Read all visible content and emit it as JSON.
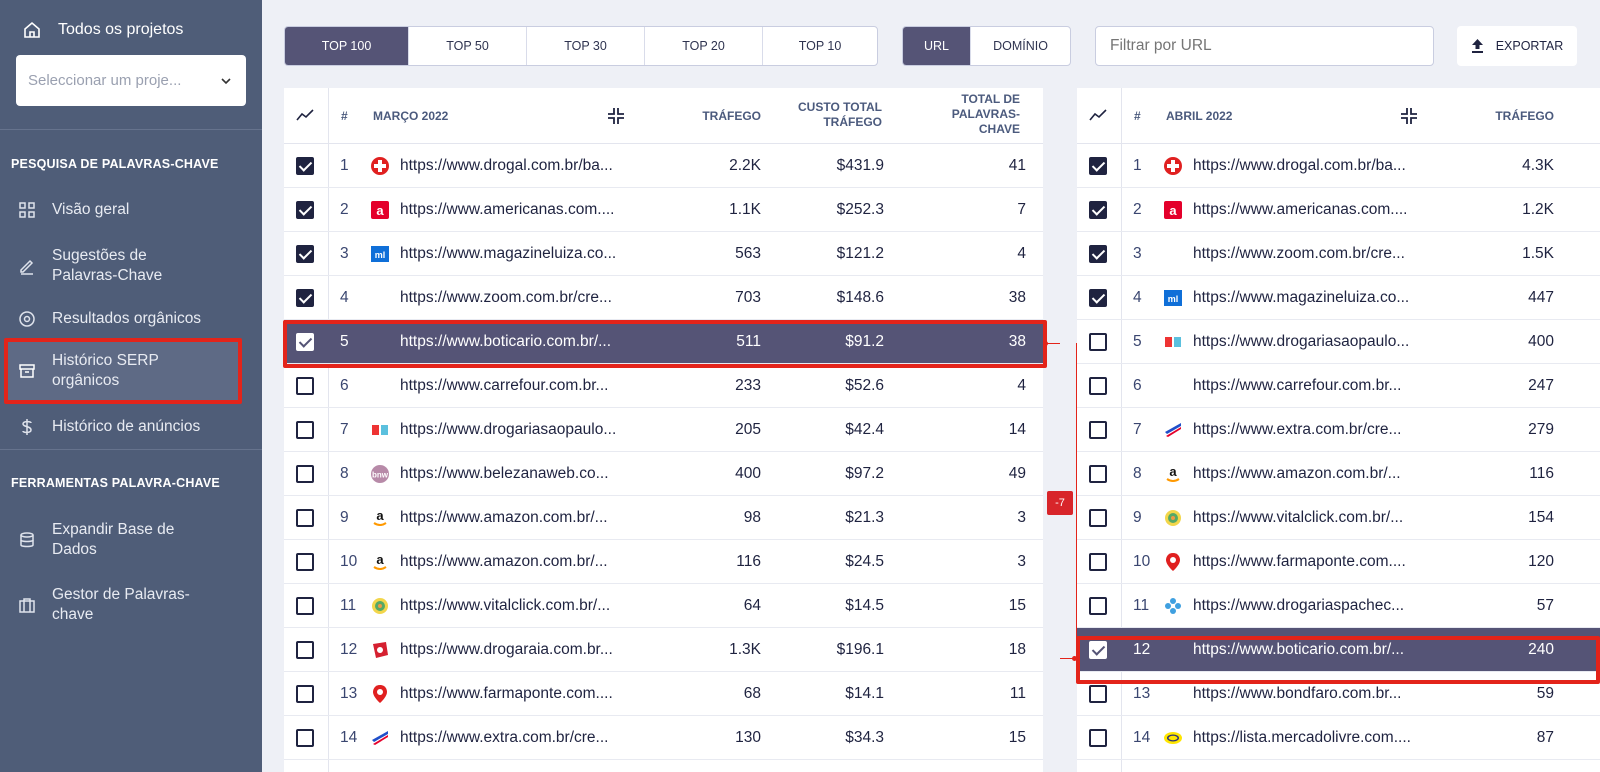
{
  "sidebar": {
    "all_projects": "Todos os projetos",
    "project_select_placeholder": "Seleccionar um proje...",
    "section_keyword_research": "PESQUISA DE PALAVRAS-CHAVE",
    "section_keyword_tools": "FERRAMENTAS PALAVRA-CHAVE",
    "items": [
      {
        "label": "Visão geral",
        "icon": "grid-icon"
      },
      {
        "label": "Sugestões de Palavras-Chave",
        "icon": "pencil-icon"
      },
      {
        "label": "Resultados orgânicos",
        "icon": "target-icon"
      },
      {
        "label": "Histórico SERP orgânicos",
        "icon": "archive-icon",
        "active": true
      },
      {
        "label": "Histórico de anúncios",
        "icon": "dollar-icon"
      },
      {
        "label": "Expandir Base de Dados",
        "icon": "database-icon"
      },
      {
        "label": "Gestor de Palavras-chave",
        "icon": "briefcase-icon"
      }
    ]
  },
  "toolbar": {
    "top_options": [
      "TOP 100",
      "TOP 50",
      "TOP 30",
      "TOP 20",
      "TOP 10"
    ],
    "top_selected": "TOP 100",
    "mode_options": [
      "URL",
      "DOMÍNIO"
    ],
    "mode_selected": "URL",
    "filter_placeholder": "Filtrar por URL",
    "export_label": "EXPORTAR"
  },
  "left_table": {
    "period": "MARÇO 2022",
    "headers": {
      "hash": "#",
      "traffic": "TRÁFEGO",
      "cost": "CUSTO TOTAL TRÁFEGO",
      "keywords": "TOTAL DE PALAVRAS-CHAVE"
    },
    "rows": [
      {
        "pos": "1",
        "url": "https://www.drogal.com.br/ba...",
        "traffic": "2.2K",
        "cost": "$431.9",
        "keywords": "41",
        "checked": true,
        "fav": "drogal"
      },
      {
        "pos": "2",
        "url": "https://www.americanas.com....",
        "traffic": "1.1K",
        "cost": "$252.3",
        "keywords": "7",
        "checked": true,
        "fav": "americanas"
      },
      {
        "pos": "3",
        "url": "https://www.magazineluiza.co...",
        "traffic": "563",
        "cost": "$121.2",
        "keywords": "4",
        "checked": true,
        "fav": "magalu"
      },
      {
        "pos": "4",
        "url": "https://www.zoom.com.br/cre...",
        "traffic": "703",
        "cost": "$148.6",
        "keywords": "38",
        "checked": true,
        "fav": ""
      },
      {
        "pos": "5",
        "url": "https://www.boticario.com.br/...",
        "traffic": "511",
        "cost": "$91.2",
        "keywords": "38",
        "checked": true,
        "fav": "",
        "highlight": true
      },
      {
        "pos": "6",
        "url": "https://www.carrefour.com.br...",
        "traffic": "233",
        "cost": "$52.6",
        "keywords": "4",
        "checked": false,
        "fav": ""
      },
      {
        "pos": "7",
        "url": "https://www.drogariasaopaulo...",
        "traffic": "205",
        "cost": "$42.4",
        "keywords": "14",
        "checked": false,
        "fav": "dsp"
      },
      {
        "pos": "8",
        "url": "https://www.belezanaweb.co...",
        "traffic": "400",
        "cost": "$97.2",
        "keywords": "49",
        "checked": false,
        "fav": "bnw"
      },
      {
        "pos": "9",
        "url": "https://www.amazon.com.br/...",
        "traffic": "98",
        "cost": "$21.3",
        "keywords": "3",
        "checked": false,
        "fav": "amazon"
      },
      {
        "pos": "10",
        "url": "https://www.amazon.com.br/...",
        "traffic": "116",
        "cost": "$24.5",
        "keywords": "3",
        "checked": false,
        "fav": "amazon"
      },
      {
        "pos": "11",
        "url": "https://www.vitalclick.com.br/...",
        "traffic": "64",
        "cost": "$14.5",
        "keywords": "15",
        "checked": false,
        "fav": "vital"
      },
      {
        "pos": "12",
        "url": "https://www.drogaraia.com.br...",
        "traffic": "1.3K",
        "cost": "$196.1",
        "keywords": "18",
        "checked": false,
        "fav": "raia"
      },
      {
        "pos": "13",
        "url": "https://www.farmaponte.com....",
        "traffic": "68",
        "cost": "$14.1",
        "keywords": "11",
        "checked": false,
        "fav": "farmaponte"
      },
      {
        "pos": "14",
        "url": "https://www.extra.com.br/cre...",
        "traffic": "130",
        "cost": "$34.3",
        "keywords": "15",
        "checked": false,
        "fav": "extra"
      }
    ]
  },
  "right_table": {
    "period": "ABRIL 2022",
    "headers": {
      "hash": "#",
      "traffic": "TRÁFEGO"
    },
    "rows": [
      {
        "pos": "1",
        "url": "https://www.drogal.com.br/ba...",
        "traffic": "4.3K",
        "checked": true,
        "fav": "drogal"
      },
      {
        "pos": "2",
        "url": "https://www.americanas.com....",
        "traffic": "1.2K",
        "checked": true,
        "fav": "americanas"
      },
      {
        "pos": "3",
        "url": "https://www.zoom.com.br/cre...",
        "traffic": "1.5K",
        "checked": true,
        "fav": ""
      },
      {
        "pos": "4",
        "url": "https://www.magazineluiza.co...",
        "traffic": "447",
        "checked": true,
        "fav": "magalu"
      },
      {
        "pos": "5",
        "url": "https://www.drogariasaopaulo...",
        "traffic": "400",
        "checked": false,
        "fav": "dsp"
      },
      {
        "pos": "6",
        "url": "https://www.carrefour.com.br...",
        "traffic": "247",
        "checked": false,
        "fav": ""
      },
      {
        "pos": "7",
        "url": "https://www.extra.com.br/cre...",
        "traffic": "279",
        "checked": false,
        "fav": "extra"
      },
      {
        "pos": "8",
        "url": "https://www.amazon.com.br/...",
        "traffic": "116",
        "checked": false,
        "fav": "amazon"
      },
      {
        "pos": "9",
        "url": "https://www.vitalclick.com.br/...",
        "traffic": "154",
        "checked": false,
        "fav": "vital"
      },
      {
        "pos": "10",
        "url": "https://www.farmaponte.com....",
        "traffic": "120",
        "checked": false,
        "fav": "farmaponte"
      },
      {
        "pos": "11",
        "url": "https://www.drogariaspachec...",
        "traffic": "57",
        "checked": false,
        "fav": "pacheco"
      },
      {
        "pos": "12",
        "url": "https://www.boticario.com.br/...",
        "traffic": "240",
        "checked": true,
        "fav": "",
        "highlight": true
      },
      {
        "pos": "13",
        "url": "https://www.bondfaro.com.br...",
        "traffic": "59",
        "checked": false,
        "fav": ""
      },
      {
        "pos": "14",
        "url": "https://lista.mercadolivre.com....",
        "traffic": "87",
        "checked": false,
        "fav": "ml"
      }
    ]
  },
  "position_change": "-7",
  "colors": {
    "sidebar": "#4f5d78",
    "accent": "#555476",
    "highlight_border": "#e3241a"
  }
}
